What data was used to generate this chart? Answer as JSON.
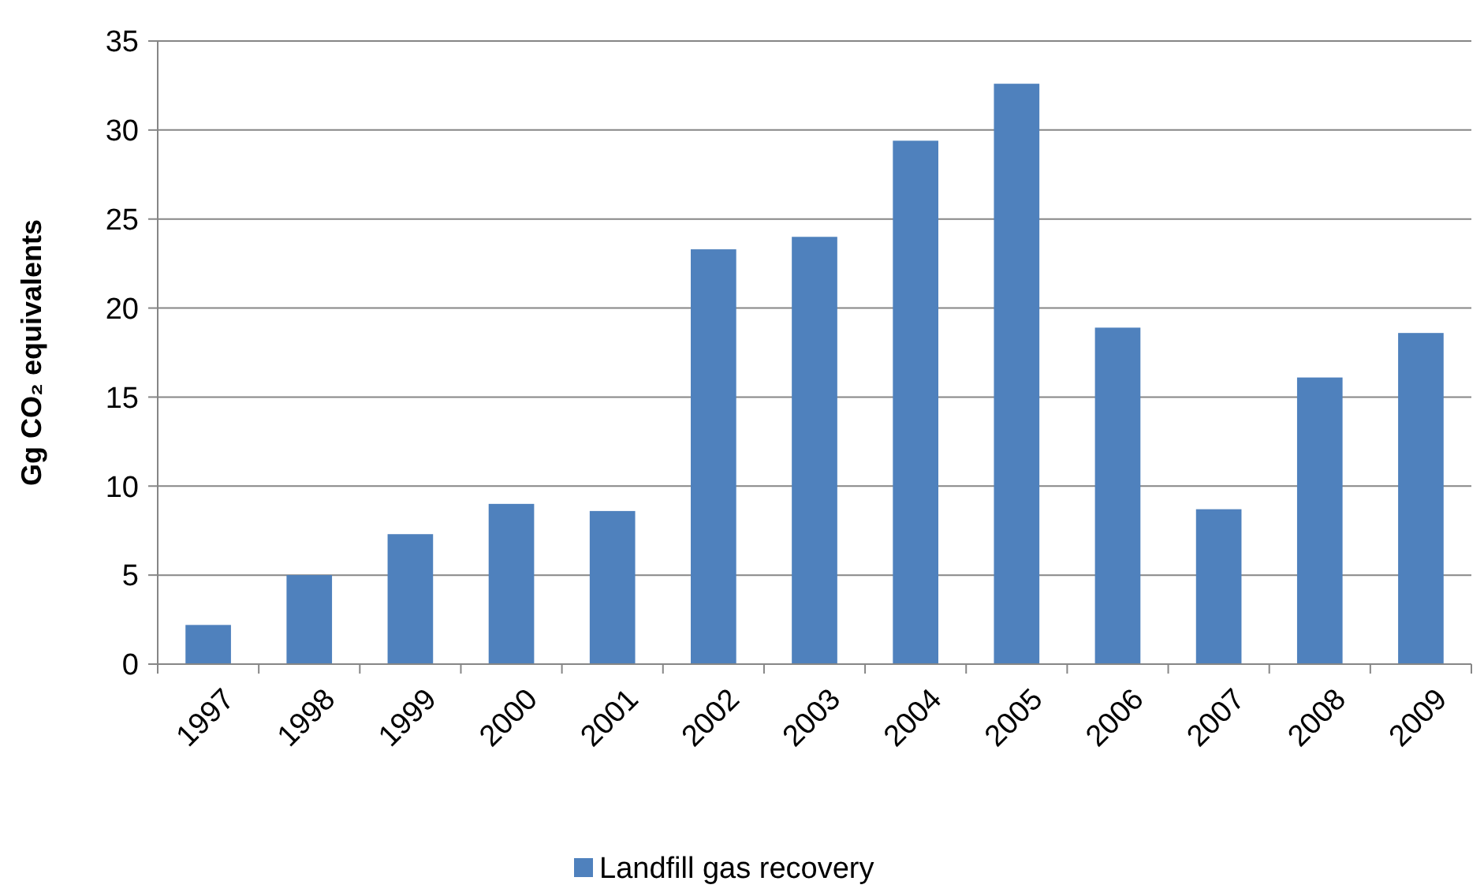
{
  "chart_data": {
    "type": "bar",
    "ylabel": "Gg CO₂ equivalents",
    "categories": [
      "1997",
      "1998",
      "1999",
      "2000",
      "2001",
      "2002",
      "2003",
      "2004",
      "2005",
      "2006",
      "2007",
      "2008",
      "2009"
    ],
    "series": [
      {
        "name": "Landfill gas recovery",
        "color": "#4f81bd",
        "values": [
          2.2,
          5.0,
          7.3,
          9.0,
          8.6,
          23.3,
          24.0,
          29.4,
          32.6,
          18.9,
          8.7,
          16.1,
          18.6
        ]
      }
    ],
    "ylim": [
      0,
      35
    ],
    "yticks": [
      0,
      5,
      10,
      15,
      20,
      25,
      30,
      35
    ],
    "grid": "y",
    "legend": "bottom"
  }
}
